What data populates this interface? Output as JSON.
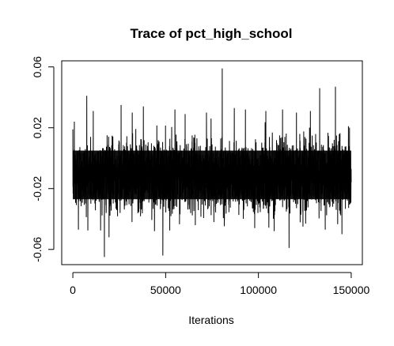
{
  "chart_data": {
    "type": "line",
    "title": "Trace of pct_high_school",
    "xlabel": "Iterations",
    "ylabel": "",
    "xlim": [
      -6000,
      156000
    ],
    "ylim": [
      -0.07,
      0.064
    ],
    "x_ticks": [
      0,
      50000,
      100000,
      150000
    ],
    "x_tick_labels": [
      "0",
      "50000",
      "100000",
      "150000"
    ],
    "y_ticks": [
      -0.06,
      -0.02,
      0.02,
      0.06
    ],
    "y_tick_labels": [
      "-0.06",
      "-0.02",
      "0.02",
      "0.06"
    ],
    "grid": false,
    "legend": "none",
    "series": [
      {
        "color": "#000000",
        "x_start": 0,
        "x_end": 150000,
        "center": -0.011,
        "band_low": -0.027,
        "band_high": 0.005,
        "observed_min": -0.066,
        "observed_max": 0.059,
        "spikes": [
          {
            "x": 800,
            "y": 0.024
          },
          {
            "x": 3000,
            "y": -0.047
          },
          {
            "x": 7500,
            "y": 0.041
          },
          {
            "x": 11000,
            "y": 0.031
          },
          {
            "x": 17000,
            "y": -0.065
          },
          {
            "x": 19500,
            "y": -0.052
          },
          {
            "x": 26000,
            "y": 0.035
          },
          {
            "x": 32000,
            "y": 0.03
          },
          {
            "x": 38000,
            "y": 0.034
          },
          {
            "x": 44000,
            "y": -0.048
          },
          {
            "x": 48500,
            "y": -0.064
          },
          {
            "x": 55000,
            "y": 0.032
          },
          {
            "x": 60500,
            "y": 0.029
          },
          {
            "x": 66000,
            "y": -0.044
          },
          {
            "x": 72000,
            "y": 0.03
          },
          {
            "x": 76000,
            "y": -0.042
          },
          {
            "x": 80500,
            "y": 0.059
          },
          {
            "x": 87000,
            "y": 0.033
          },
          {
            "x": 93000,
            "y": 0.032
          },
          {
            "x": 98000,
            "y": -0.046
          },
          {
            "x": 104000,
            "y": 0.031
          },
          {
            "x": 108500,
            "y": -0.048
          },
          {
            "x": 113000,
            "y": 0.032
          },
          {
            "x": 116500,
            "y": -0.059
          },
          {
            "x": 120500,
            "y": 0.03
          },
          {
            "x": 124000,
            "y": -0.045
          },
          {
            "x": 128000,
            "y": 0.031
          },
          {
            "x": 133000,
            "y": 0.046
          },
          {
            "x": 136000,
            "y": -0.047
          },
          {
            "x": 141500,
            "y": 0.047
          },
          {
            "x": 145000,
            "y": -0.05
          },
          {
            "x": 148500,
            "y": 0.021
          }
        ]
      }
    ]
  }
}
